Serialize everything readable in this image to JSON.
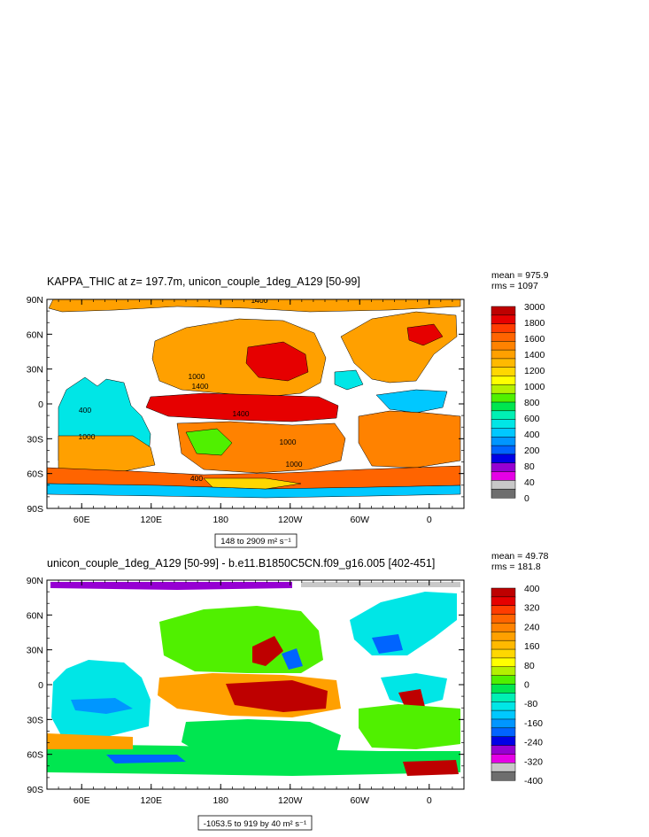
{
  "colors": {
    "land": "#ffffff",
    "frame": "#000000",
    "top_palette": [
      "#6e6e6e",
      "#c8c8c8",
      "#e600e6",
      "#9600d2",
      "#0000e6",
      "#0064ff",
      "#0096ff",
      "#00c8ff",
      "#00e6e6",
      "#00f0b4",
      "#00e650",
      "#50f000",
      "#b4f000",
      "#ffff00",
      "#ffd700",
      "#ffb900",
      "#ffa000",
      "#ff8200",
      "#ff6400",
      "#ff3c00",
      "#e60000",
      "#be0000"
    ],
    "bottom_palette": [
      "#6e6e6e",
      "#c8c8c8",
      "#e600e6",
      "#9600d2",
      "#0000e6",
      "#0064ff",
      "#0096ff",
      "#00c8ff",
      "#00e6e6",
      "#00f0b4",
      "#00e650",
      "#50f000",
      "#b4f000",
      "#ffff00",
      "#ffd700",
      "#ffb900",
      "#ffa000",
      "#ff8200",
      "#ff6400",
      "#ff3c00",
      "#e60000",
      "#be0000"
    ]
  },
  "chart_data": [
    {
      "type": "heatmap",
      "title": "KAPPA_THIC at z= 197.7m, unicon_couple_1deg_A129 [50-99]",
      "stats": {
        "mean_label": "mean = 975.9",
        "rms_label": "rms = 1097"
      },
      "range_label": "148 to 2909 m² s⁻¹",
      "x_ticks": [
        "60E",
        "120E",
        "180",
        "120W",
        "60W",
        "0"
      ],
      "x_tick_lon": [
        60,
        120,
        180,
        240,
        300,
        360
      ],
      "lon_range": [
        30,
        390
      ],
      "y_ticks": [
        "90N",
        "60N",
        "30N",
        "0",
        "30S",
        "60S",
        "90S"
      ],
      "y_tick_lat": [
        90,
        60,
        30,
        0,
        -30,
        -60,
        -90
      ],
      "colorbar_labels": [
        "3000",
        "1800",
        "1600",
        "1400",
        "1200",
        "1000",
        "800",
        "600",
        "400",
        "200",
        "80",
        "40",
        "0"
      ],
      "contour_labels": [
        "1400",
        "1000",
        "1400",
        "400",
        "1400",
        "1000",
        "1000",
        "1000",
        "400"
      ]
    },
    {
      "type": "heatmap",
      "title": "unicon_couple_1deg_A129 [50-99] - b.e11.B1850C5CN.f09_g16.005 [402-451]",
      "stats": {
        "mean_label": "mean = 49.78",
        "rms_label": "rms = 181.8"
      },
      "range_label": "-1053.5 to 919 by 40 m² s⁻¹",
      "x_ticks": [
        "60E",
        "120E",
        "180",
        "120W",
        "60W",
        "0"
      ],
      "x_tick_lon": [
        60,
        120,
        180,
        240,
        300,
        360
      ],
      "lon_range": [
        30,
        390
      ],
      "y_ticks": [
        "90N",
        "60N",
        "30N",
        "0",
        "30S",
        "60S",
        "90S"
      ],
      "y_tick_lat": [
        90,
        60,
        30,
        0,
        -30,
        -60,
        -90
      ],
      "colorbar_labels": [
        "400",
        "320",
        "240",
        "160",
        "80",
        "0",
        "-80",
        "-160",
        "-240",
        "-320",
        "-400"
      ]
    }
  ]
}
